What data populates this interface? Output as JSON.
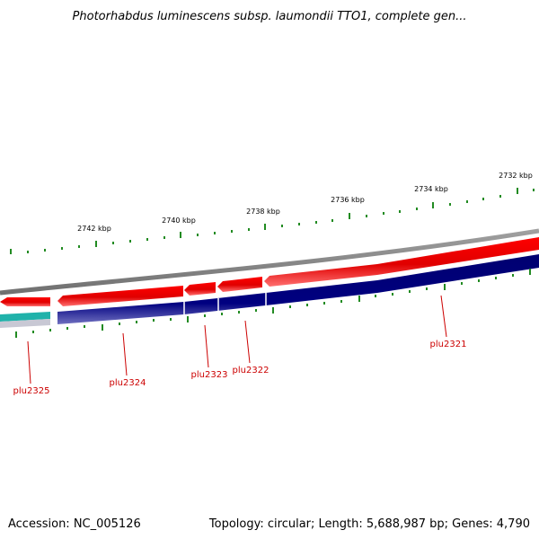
{
  "title": "Photorhabdus luminescens subsp. laumondii TTO1, complete gen...",
  "footer": {
    "accession": "Accession: NC_005126",
    "summary": "Topology: circular; Length: 5,688,987 bp; Genes: 4,790"
  },
  "scale_labels": [
    "2742 kbp",
    "2740 kbp",
    "2738 kbp",
    "2736 kbp",
    "2734 kbp",
    "2732 kbp"
  ],
  "genes": [
    {
      "name": "plu2325",
      "strand": "reverse"
    },
    {
      "name": "plu2324",
      "strand": "reverse"
    },
    {
      "name": "plu2323",
      "strand": "reverse"
    },
    {
      "name": "plu2322",
      "strand": "reverse"
    },
    {
      "name": "plu2321",
      "strand": "reverse"
    }
  ],
  "colors": {
    "gene_arrow": "#ff0000",
    "cds_band": "#000080",
    "backbone": "#808080",
    "ticks": "#228b22",
    "labels": "#cc0000",
    "gc_track": "#20b2aa"
  }
}
